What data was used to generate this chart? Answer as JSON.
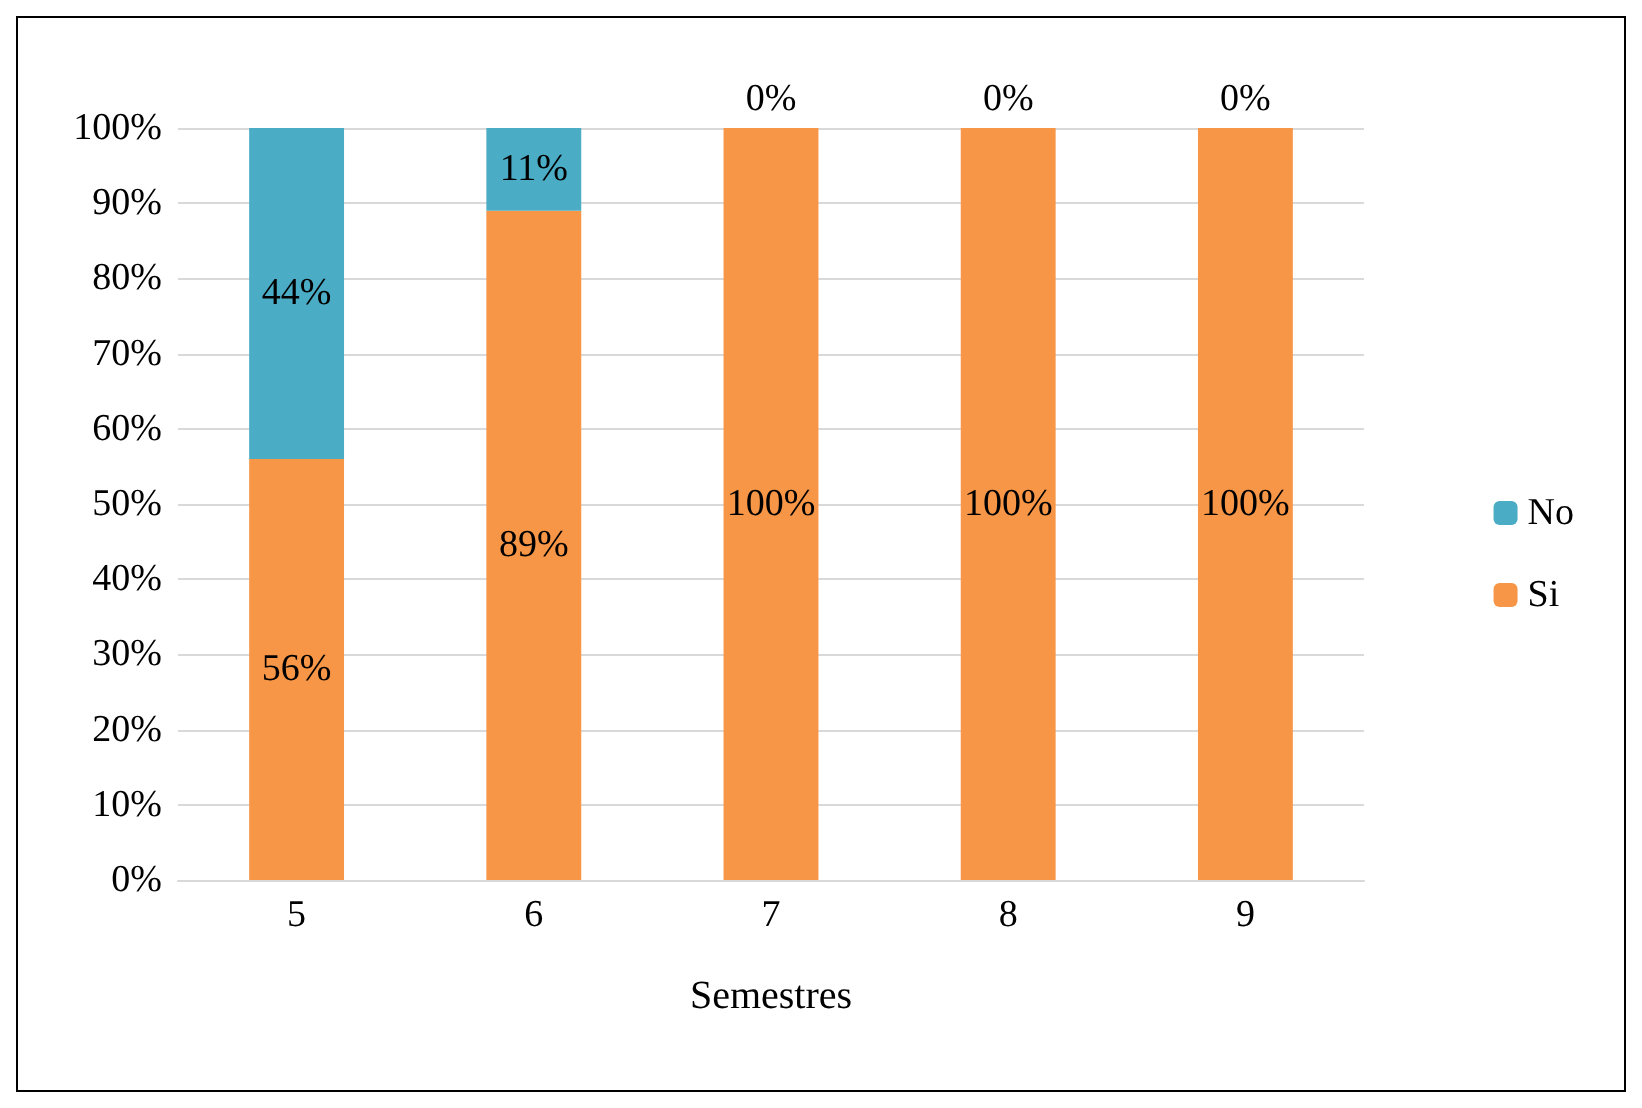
{
  "chart_data": {
    "type": "bar",
    "stacked": true,
    "xlabel": "Semestres",
    "categories": [
      "5",
      "6",
      "7",
      "8",
      "9"
    ],
    "series": [
      {
        "name": "Si",
        "color": "#f79646",
        "values": [
          56,
          89,
          100,
          100,
          100
        ],
        "value_labels": [
          "56%",
          "89%",
          "100%",
          "100%",
          "100%"
        ]
      },
      {
        "name": "No",
        "color": "#4bacc6",
        "values": [
          44,
          11,
          0,
          0,
          0
        ],
        "value_labels": [
          "44%",
          "11%",
          "0%",
          "0%",
          "0%"
        ]
      }
    ],
    "ylim": [
      0,
      100
    ],
    "yticks": [
      {
        "value": 0,
        "label": "0%"
      },
      {
        "value": 10,
        "label": "10%"
      },
      {
        "value": 20,
        "label": "20%"
      },
      {
        "value": 30,
        "label": "30%"
      },
      {
        "value": 40,
        "label": "40%"
      },
      {
        "value": 50,
        "label": "50%"
      },
      {
        "value": 60,
        "label": "60%"
      },
      {
        "value": 70,
        "label": "70%"
      },
      {
        "value": 80,
        "label": "80%"
      },
      {
        "value": 90,
        "label": "90%"
      },
      {
        "value": 100,
        "label": "100%"
      }
    ],
    "grid": "y",
    "legend": "right"
  }
}
